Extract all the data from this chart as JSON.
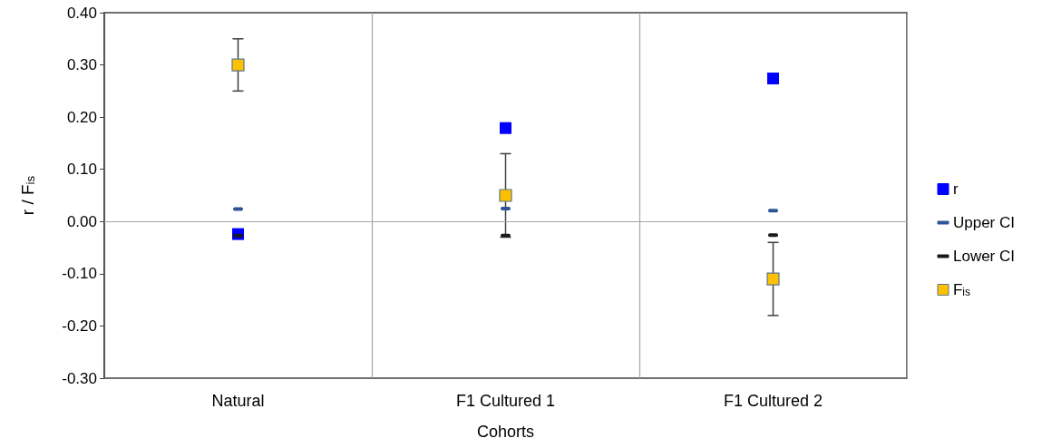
{
  "chart_data": {
    "type": "scatter",
    "xlabel": "Cohorts",
    "ylabel": "r / F$_{is}$",
    "categories": [
      "Natural",
      "F1 Cultured 1",
      "F1 Cultured 2"
    ],
    "series": [
      {
        "name": "r",
        "color": "#0000ff",
        "marker": "square",
        "values": [
          -0.024,
          0.179,
          0.274
        ]
      },
      {
        "name": "Upper CI",
        "color": "#2f5597",
        "values": [
          0.024,
          0.025,
          0.021
        ]
      },
      {
        "name": "Lower CI",
        "color": "#1a1a1a",
        "values": [
          -0.027,
          -0.027,
          -0.026
        ]
      },
      {
        "name": "F$_{is}$",
        "color": "#ffc000",
        "marker": "square",
        "values": [
          0.3,
          0.05,
          -0.11
        ],
        "errors": [
          [
            0.25,
            0.35
          ],
          [
            -0.03,
            0.13
          ],
          [
            -0.18,
            -0.04
          ]
        ]
      }
    ],
    "ylim": [
      -0.3,
      0.4
    ],
    "yticks": [
      {
        "value": -0.3,
        "label": "-0.30"
      },
      {
        "value": -0.2,
        "label": "-0.20"
      },
      {
        "value": -0.1,
        "label": "-0.10"
      },
      {
        "value": 0,
        "label": "0.00"
      },
      {
        "value": 0.1,
        "label": "0.10"
      },
      {
        "value": 0.2,
        "label": "0.20"
      },
      {
        "value": 0.3,
        "label": "0.30"
      },
      {
        "value": 0.4,
        "label": "0.40"
      }
    ],
    "ref_lines": [
      {
        "axis": "y",
        "value": 0,
        "color": "#a6a6a6"
      }
    ],
    "grid": "x",
    "legend": "right"
  }
}
